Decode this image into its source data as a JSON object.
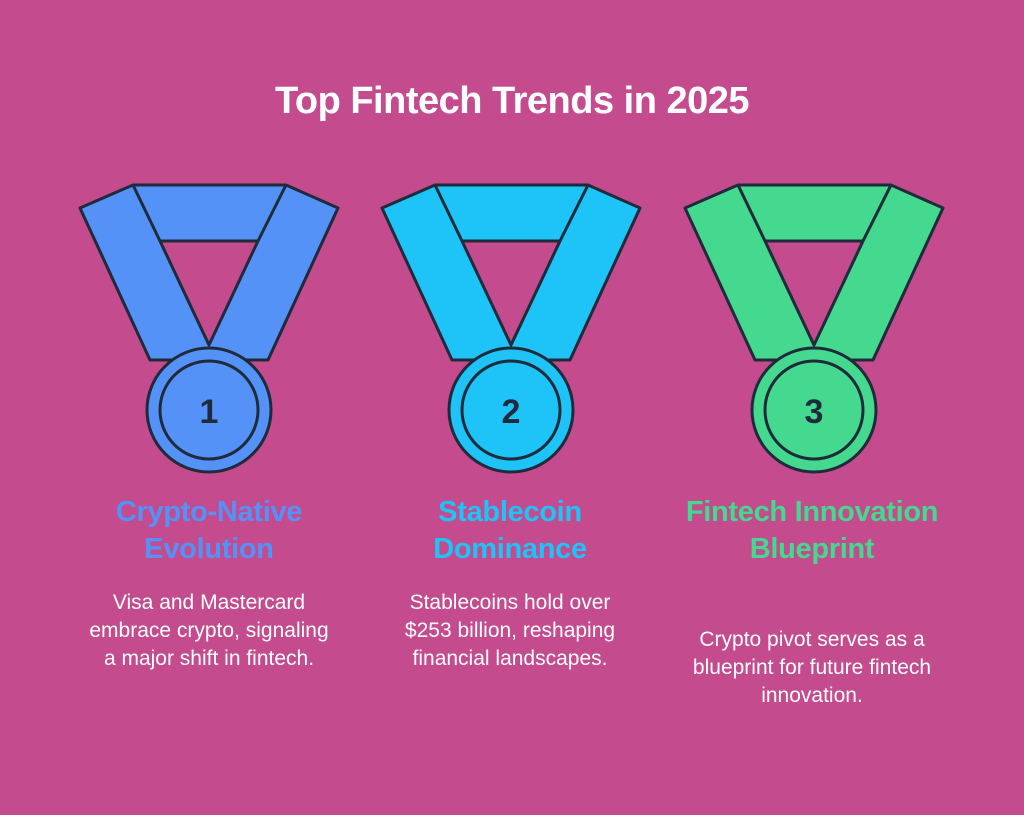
{
  "title": "Top Fintech Trends in 2025",
  "colors": {
    "background": "#c34b8e",
    "outline": "#1f2b3a"
  },
  "trends": [
    {
      "number": "1",
      "heading": "Crypto-Native Evolution",
      "description": "Visa and Mastercard embrace crypto, signaling a major shift in fintech.",
      "color": "#5592f7"
    },
    {
      "number": "2",
      "heading": "Stablecoin Dominance",
      "description": "Stablecoins hold over $253 billion, reshaping financial landscapes.",
      "color": "#1ec3f7"
    },
    {
      "number": "3",
      "heading": "Fintech Innovation Blueprint",
      "description": "Crypto pivot serves as a blueprint for future fintech innovation.",
      "color": "#44d98f"
    }
  ]
}
